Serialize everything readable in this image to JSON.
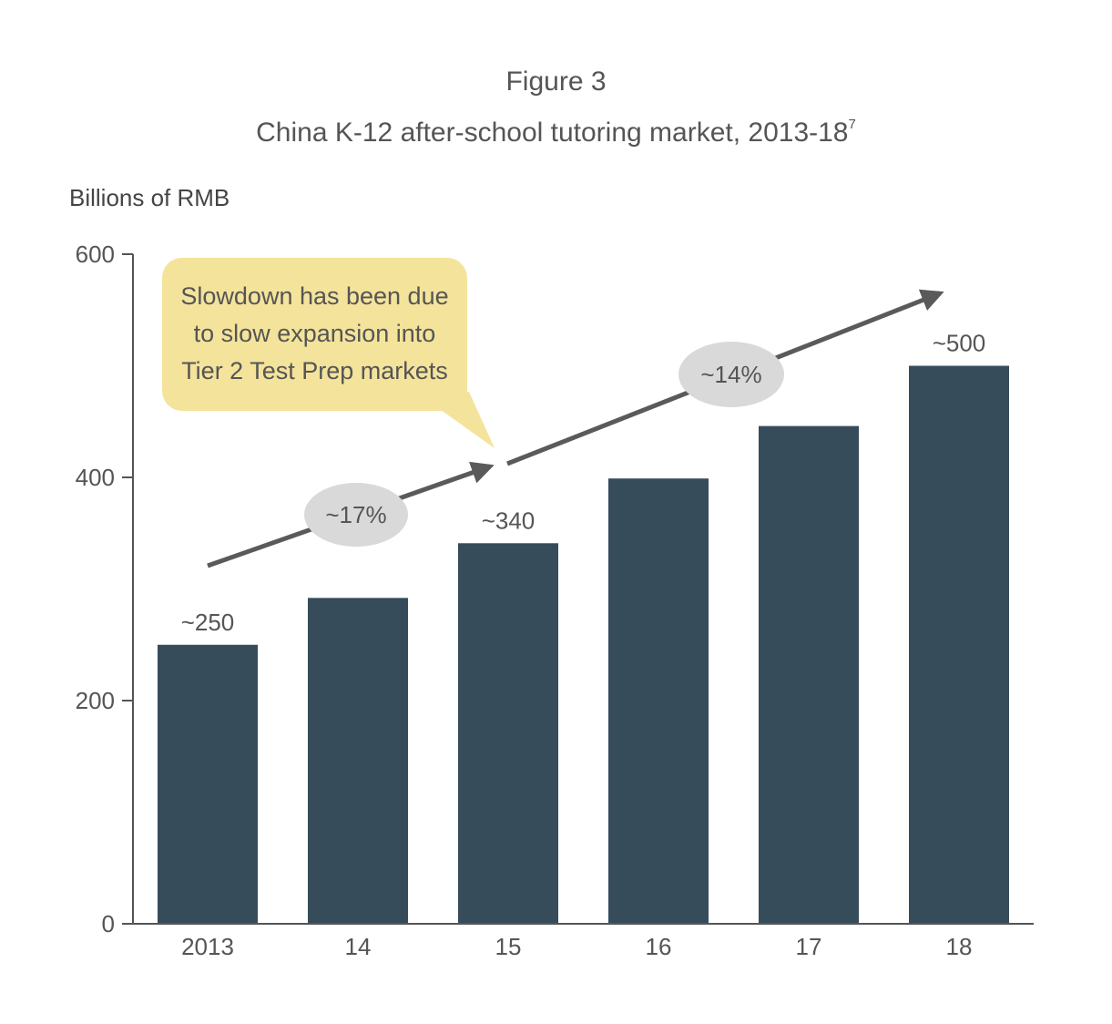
{
  "figure": {
    "label": "Figure 3",
    "title": "China K-12 after-school tutoring market, 2013-18",
    "footnote_marker": "7"
  },
  "callout": {
    "lines": [
      "Slowdown has been due",
      "to slow expansion into",
      "Tier 2 Test Prep markets"
    ]
  },
  "growth_labels": [
    {
      "text": "~17%",
      "from": "2013",
      "to": "15"
    },
    {
      "text": "~14%",
      "from": "15",
      "to": "18"
    }
  ],
  "colors": {
    "bar": "#364c5b",
    "callout": "#f4e39b",
    "pill": "#d9d9d9",
    "arrow": "#5a5a5a",
    "axis": "#555555"
  },
  "chart_data": {
    "type": "bar",
    "title": "China K-12 after-school tutoring market, 2013-18",
    "ylabel": "Billions of RMB",
    "xlabel": "",
    "categories": [
      "2013",
      "14",
      "15",
      "16",
      "17",
      "18"
    ],
    "values": [
      250,
      292,
      341,
      399,
      446,
      500
    ],
    "data_labels": [
      "~250",
      "",
      "~340",
      "",
      "",
      "~500"
    ],
    "ylim": [
      0,
      600
    ],
    "yticks": [
      0,
      200,
      400,
      600
    ],
    "grid": false
  }
}
